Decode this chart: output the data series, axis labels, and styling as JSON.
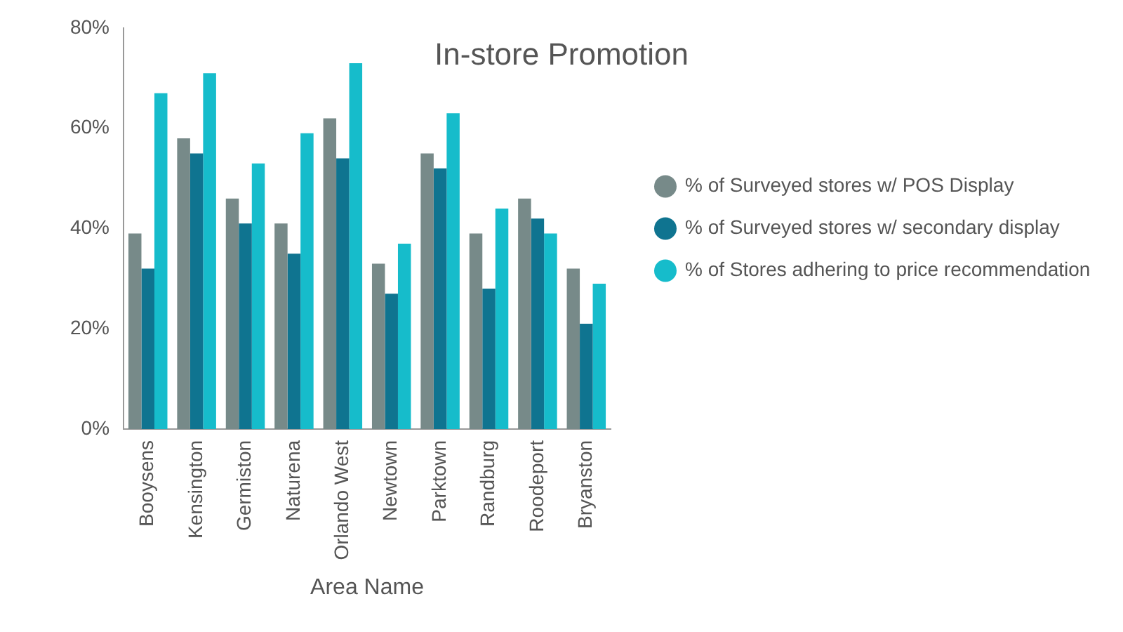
{
  "chart_data": {
    "type": "bar",
    "title": "In-store Promotion",
    "xlabel": "Area Name",
    "categories": [
      "Booysens",
      "Kensington",
      "Germiston",
      "Naturena",
      "Orlando West",
      "Newtown",
      "Parktown",
      "Randburg",
      "Roodeport",
      "Bryanston"
    ],
    "series": [
      {
        "name": "% of Surveyed stores w/ POS Display",
        "color": "#778a89",
        "values": [
          39,
          58,
          46,
          41,
          62,
          33,
          55,
          39,
          46,
          32
        ]
      },
      {
        "name": "% of Surveyed stores w/ secondary display",
        "color": "#0f7490",
        "values": [
          32,
          55,
          41,
          35,
          54,
          27,
          52,
          28,
          42,
          21
        ]
      },
      {
        "name": "% of Stores adhering to price recommendation",
        "color": "#16bccb",
        "values": [
          67,
          71,
          53,
          59,
          73,
          37,
          63,
          44,
          39,
          29
        ]
      }
    ],
    "ylim": [
      0,
      80
    ],
    "yticks": [
      {
        "value": 0,
        "label": "0%"
      },
      {
        "value": 20,
        "label": "20%"
      },
      {
        "value": 40,
        "label": "40%"
      },
      {
        "value": 60,
        "label": "60%"
      },
      {
        "value": 80,
        "label": "80%"
      }
    ],
    "grid": false,
    "legend": "right"
  }
}
